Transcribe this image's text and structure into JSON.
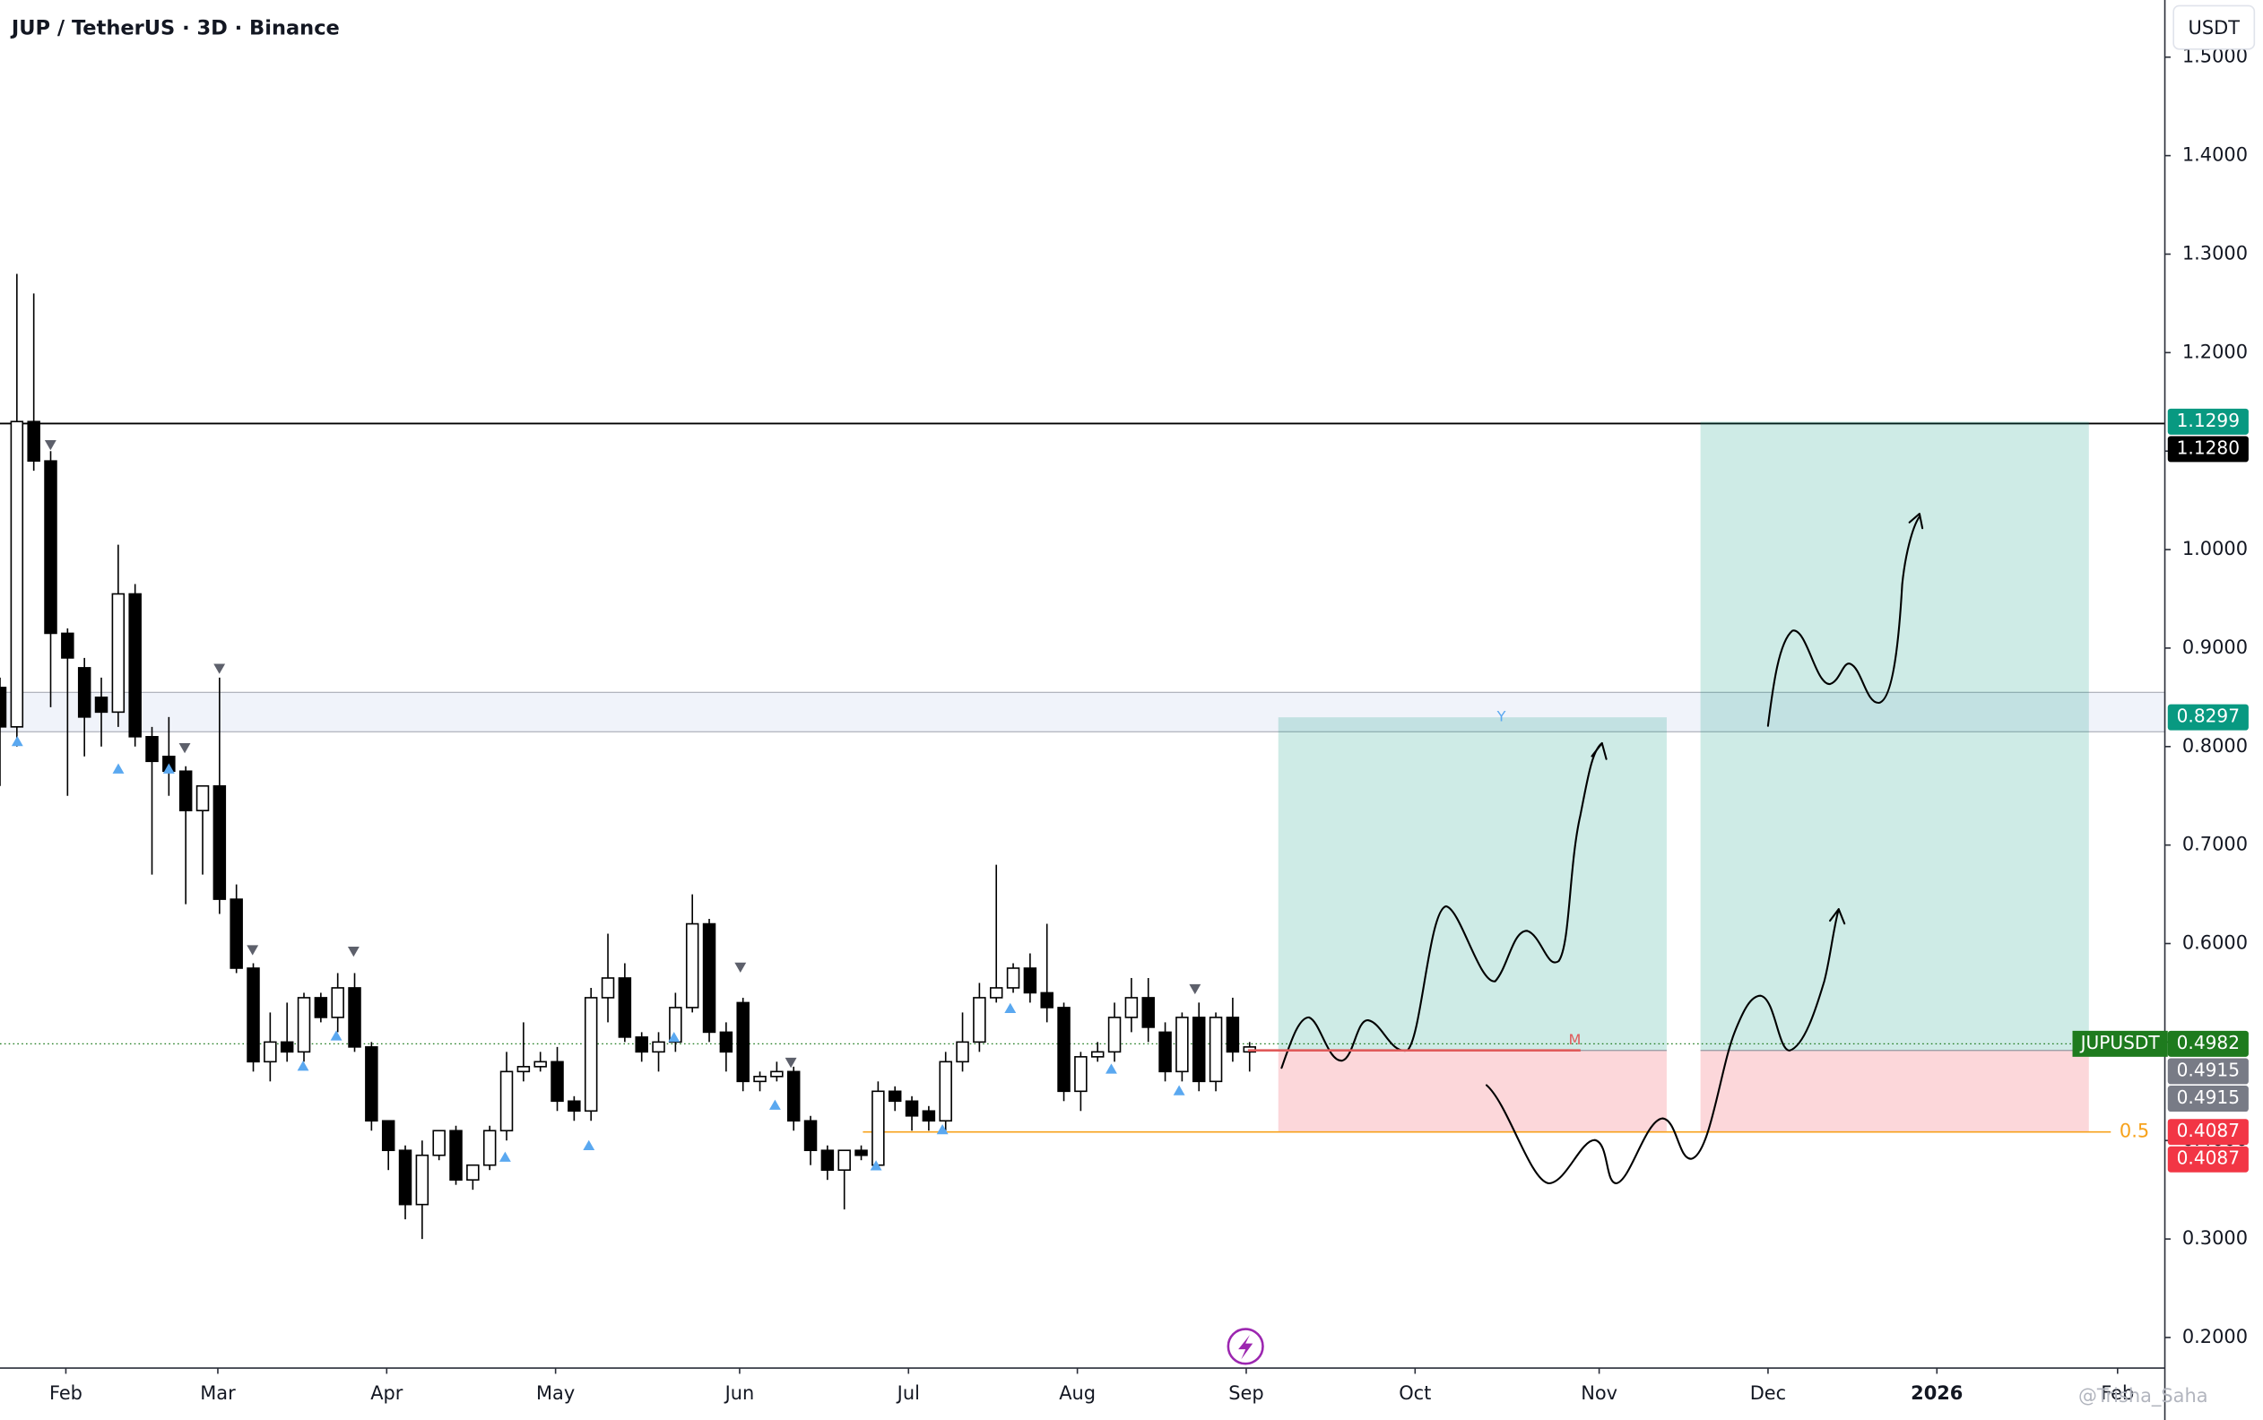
{
  "header": {
    "title": "JUP / TetherUS · 3D · Binance",
    "currency": "USDT",
    "watermark": "@Trisha_Saha"
  },
  "chart_data": {
    "type": "candlestick",
    "x": [
      0,
      1,
      2,
      3,
      4,
      5,
      6,
      7,
      8,
      9,
      10,
      11,
      12,
      13,
      14,
      15,
      16,
      17,
      18,
      19,
      20,
      21,
      22,
      23,
      24,
      25,
      26,
      27,
      28,
      29,
      30,
      31,
      32,
      33,
      34,
      35,
      36,
      37,
      38,
      39,
      40,
      41,
      42,
      43,
      44,
      45,
      46,
      47,
      48,
      49,
      50,
      51,
      52,
      53,
      54,
      55,
      56,
      57,
      58,
      59,
      60,
      61,
      62,
      63,
      64,
      65,
      66,
      67,
      68,
      69,
      70,
      71,
      72,
      73,
      74
    ],
    "open": [
      0.86,
      0.82,
      1.13,
      1.09,
      0.915,
      0.88,
      0.85,
      0.835,
      0.955,
      0.81,
      0.79,
      0.775,
      0.735,
      0.76,
      0.645,
      0.575,
      0.48,
      0.5,
      0.49,
      0.545,
      0.525,
      0.555,
      0.495,
      0.42,
      0.39,
      0.335,
      0.385,
      0.41,
      0.36,
      0.375,
      0.41,
      0.47,
      0.475,
      0.48,
      0.44,
      0.43,
      0.545,
      0.565,
      0.505,
      0.49,
      0.5,
      0.535,
      0.62,
      0.51,
      0.54,
      0.46,
      0.465,
      0.47,
      0.42,
      0.39,
      0.37,
      0.39,
      0.375,
      0.45,
      0.44,
      0.43,
      0.42,
      0.48,
      0.5,
      0.545,
      0.555,
      0.575,
      0.55,
      0.535,
      0.45,
      0.485,
      0.49,
      0.525,
      0.545,
      0.51,
      0.47,
      0.525,
      0.46,
      0.525,
      0.49
    ],
    "high": [
      0.87,
      1.28,
      1.26,
      1.1,
      0.92,
      0.89,
      0.87,
      1.005,
      0.965,
      0.82,
      0.83,
      0.78,
      0.76,
      0.87,
      0.66,
      0.58,
      0.53,
      0.54,
      0.55,
      0.55,
      0.57,
      0.57,
      0.5,
      0.42,
      0.395,
      0.4,
      0.41,
      0.415,
      0.375,
      0.415,
      0.49,
      0.52,
      0.49,
      0.495,
      0.445,
      0.555,
      0.61,
      0.58,
      0.51,
      0.51,
      0.55,
      0.65,
      0.625,
      0.52,
      0.545,
      0.47,
      0.48,
      0.475,
      0.425,
      0.395,
      0.39,
      0.395,
      0.46,
      0.455,
      0.445,
      0.435,
      0.49,
      0.53,
      0.56,
      0.68,
      0.58,
      0.59,
      0.62,
      0.54,
      0.49,
      0.5,
      0.54,
      0.565,
      0.565,
      0.52,
      0.53,
      0.54,
      0.53,
      0.545,
      0.5
    ],
    "low": [
      0.76,
      0.8,
      1.08,
      0.84,
      0.75,
      0.79,
      0.8,
      0.82,
      0.8,
      0.67,
      0.75,
      0.64,
      0.67,
      0.63,
      0.57,
      0.47,
      0.46,
      0.48,
      0.48,
      0.52,
      0.51,
      0.49,
      0.41,
      0.37,
      0.32,
      0.3,
      0.38,
      0.355,
      0.35,
      0.37,
      0.4,
      0.46,
      0.47,
      0.43,
      0.42,
      0.42,
      0.52,
      0.5,
      0.48,
      0.47,
      0.49,
      0.53,
      0.5,
      0.47,
      0.45,
      0.45,
      0.46,
      0.41,
      0.375,
      0.36,
      0.33,
      0.38,
      0.37,
      0.43,
      0.41,
      0.41,
      0.41,
      0.47,
      0.49,
      0.54,
      0.55,
      0.54,
      0.52,
      0.44,
      0.43,
      0.48,
      0.48,
      0.51,
      0.5,
      0.46,
      0.46,
      0.45,
      0.45,
      0.48,
      0.47
    ],
    "close": [
      0.82,
      1.13,
      1.09,
      0.915,
      0.89,
      0.83,
      0.835,
      0.955,
      0.81,
      0.785,
      0.775,
      0.735,
      0.76,
      0.645,
      0.575,
      0.48,
      0.5,
      0.49,
      0.545,
      0.525,
      0.555,
      0.495,
      0.42,
      0.39,
      0.335,
      0.385,
      0.41,
      0.36,
      0.375,
      0.41,
      0.47,
      0.475,
      0.48,
      0.44,
      0.43,
      0.545,
      0.565,
      0.505,
      0.49,
      0.5,
      0.535,
      0.62,
      0.51,
      0.49,
      0.46,
      0.465,
      0.47,
      0.42,
      0.39,
      0.37,
      0.39,
      0.385,
      0.45,
      0.44,
      0.425,
      0.42,
      0.48,
      0.5,
      0.545,
      0.555,
      0.575,
      0.55,
      0.535,
      0.45,
      0.485,
      0.49,
      0.525,
      0.545,
      0.515,
      0.47,
      0.525,
      0.46,
      0.525,
      0.49,
      0.495
    ],
    "up_color": "#ffffff",
    "down_color": "#000000",
    "xlim": [
      0,
      128.2
    ],
    "ylim": [
      0.169,
      1.558
    ],
    "xticks": [
      {
        "value": 3.9,
        "label": "Feb"
      },
      {
        "value": 12.9,
        "label": "Mar"
      },
      {
        "value": 22.9,
        "label": "Apr"
      },
      {
        "value": 32.9,
        "label": "May"
      },
      {
        "value": 43.8,
        "label": "Jun"
      },
      {
        "value": 53.8,
        "label": "Jul"
      },
      {
        "value": 63.8,
        "label": "Aug"
      },
      {
        "value": 73.8,
        "label": "Sep"
      },
      {
        "value": 83.8,
        "label": "Oct"
      },
      {
        "value": 94.7,
        "label": "Nov"
      },
      {
        "value": 104.7,
        "label": "Dec"
      },
      {
        "value": 114.7,
        "label": "2026"
      },
      {
        "value": 125.4,
        "label": "Feb"
      }
    ],
    "yticks": [
      {
        "value": 0.2,
        "label": "0.2000"
      },
      {
        "value": 0.3,
        "label": "0.3000"
      },
      {
        "value": 0.4,
        "label": "0.4000"
      },
      {
        "value": 0.5,
        "label": "0.5000"
      },
      {
        "value": 0.6,
        "label": "0.6000"
      },
      {
        "value": 0.7,
        "label": "0.7000"
      },
      {
        "value": 0.8,
        "label": "0.8000"
      },
      {
        "value": 0.9,
        "label": "0.9000"
      },
      {
        "value": 1.0,
        "label": "1.0000"
      },
      {
        "value": 1.1,
        "label": "1.1000"
      },
      {
        "value": 1.2,
        "label": "1.2000"
      },
      {
        "value": 1.3,
        "label": "1.3000"
      },
      {
        "value": 1.4,
        "label": "1.4000"
      },
      {
        "value": 1.5,
        "label": "1.5000"
      }
    ],
    "resistance": {
      "value": 1.128,
      "color": "#000000"
    },
    "zone": {
      "values": [
        0.815,
        0.855
      ],
      "color": "#f0f3fa"
    },
    "current": {
      "value": 0.4982,
      "color": "#1e7b1e"
    },
    "symbol": "JUPUSDT",
    "fib": {
      "ratio": 0.5,
      "value": 0.4087,
      "x": [
        51.1,
        125
      ],
      "color": "#f7a21b"
    },
    "entry_line": {
      "value": 0.4915,
      "x": [
        73.9,
        93.6
      ],
      "color": "#e05a5a",
      "tag": "M"
    },
    "positions": [
      {
        "x": [
          75.7,
          98.7
        ],
        "target": 0.8297,
        "entry": 0.4915,
        "stop": 0.4087,
        "tag": "Y"
      },
      {
        "x": [
          100.7,
          123.7
        ],
        "target": 1.1299,
        "entry": 0.4915,
        "stop": 0.4087
      }
    ],
    "price_labels": [
      {
        "value": 1.1299,
        "label": "1.1299",
        "color": "#089981"
      },
      {
        "value": 1.128,
        "label": "1.1280",
        "color": "#000000"
      },
      {
        "value": 0.8297,
        "label": "0.8297",
        "color": "#089981"
      },
      {
        "value": 0.4982,
        "label": "0.4982",
        "color": "#1e7b1e"
      },
      {
        "value": 0.4915,
        "label": "0.4915",
        "color": "#787b86"
      },
      {
        "value": 0.4915,
        "label": "0.4915",
        "color": "#787b86"
      },
      {
        "value": 0.4087,
        "label": "0.4087",
        "color": "#f23645"
      },
      {
        "value": 0.4087,
        "label": "0.4087",
        "color": "#f23645"
      }
    ]
  }
}
